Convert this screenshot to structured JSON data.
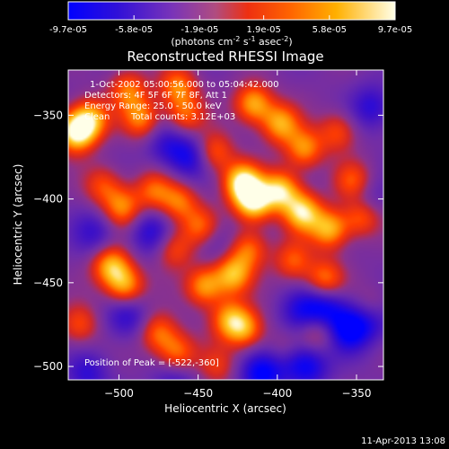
{
  "colorbar": {
    "tick_labels": [
      "-9.7e-05",
      "-5.8e-05",
      "-1.9e-05",
      "1.9e-05",
      "5.8e-05",
      "9.7e-05"
    ],
    "tick_values": [
      -9.7e-05,
      -5.8e-05,
      -1.9e-05,
      1.9e-05,
      5.8e-05,
      9.7e-05
    ],
    "range": [
      -9.7e-05,
      9.7e-05
    ],
    "units_prefix": "(photons cm",
    "units_exp1": "-2",
    "units_mid": " s",
    "units_exp2": "-1",
    "units_mid2": " asec",
    "units_exp3": "-2",
    "units_suffix": ")",
    "colors": [
      "#0000ff",
      "#3b10c8",
      "#8c3ab0",
      "#c86050",
      "#ff3000",
      "#ff8800",
      "#ffc000",
      "#ffffe8"
    ]
  },
  "chart_data": {
    "type": "heatmap",
    "title": "Reconstructed RHESSI Image",
    "xlabel": "Heliocentric X (arcsec)",
    "ylabel": "Heliocentric Y (arcsec)",
    "xlim": [
      -532,
      -333
    ],
    "ylim": [
      -508,
      -323
    ],
    "x_ticks": [
      -500,
      -450,
      -400,
      -350
    ],
    "y_ticks": [
      -350,
      -400,
      -450,
      -500
    ],
    "x_tick_labels": [
      "−500",
      "−450",
      "−400",
      "−350"
    ],
    "y_tick_labels": [
      "−350",
      "−400",
      "−450",
      "−500"
    ],
    "grid": false,
    "peak_x": -522,
    "peak_y": -360,
    "bright_sources": [
      {
        "x": -527,
        "y": -360,
        "v": 1.0
      },
      {
        "x": -518,
        "y": -352,
        "v": 0.7
      },
      {
        "x": -494,
        "y": -335,
        "v": 0.55
      },
      {
        "x": -486,
        "y": -352,
        "v": 0.6
      },
      {
        "x": -463,
        "y": -333,
        "v": 0.6
      },
      {
        "x": -458,
        "y": -350,
        "v": 0.5
      },
      {
        "x": -415,
        "y": -343,
        "v": 0.75
      },
      {
        "x": -398,
        "y": -355,
        "v": 0.7
      },
      {
        "x": -383,
        "y": -370,
        "v": 0.65
      },
      {
        "x": -362,
        "y": -360,
        "v": 0.45
      },
      {
        "x": -440,
        "y": -372,
        "v": 0.55
      },
      {
        "x": -422,
        "y": -390,
        "v": 0.95
      },
      {
        "x": -415,
        "y": -402,
        "v": 0.9
      },
      {
        "x": -398,
        "y": -395,
        "v": 0.85
      },
      {
        "x": -384,
        "y": -408,
        "v": 0.85
      },
      {
        "x": -367,
        "y": -418,
        "v": 0.75
      },
      {
        "x": -352,
        "y": -390,
        "v": 0.55
      },
      {
        "x": -347,
        "y": -410,
        "v": 0.6
      },
      {
        "x": -498,
        "y": -405,
        "v": 0.6
      },
      {
        "x": -510,
        "y": -392,
        "v": 0.45
      },
      {
        "x": -478,
        "y": -395,
        "v": 0.5
      },
      {
        "x": -462,
        "y": -402,
        "v": 0.55
      },
      {
        "x": -448,
        "y": -417,
        "v": 0.55
      },
      {
        "x": -505,
        "y": -440,
        "v": 0.75
      },
      {
        "x": -496,
        "y": -452,
        "v": 0.7
      },
      {
        "x": -465,
        "y": -430,
        "v": 0.45
      },
      {
        "x": -446,
        "y": -452,
        "v": 0.7
      },
      {
        "x": -428,
        "y": -445,
        "v": 0.75
      },
      {
        "x": -418,
        "y": -430,
        "v": 0.55
      },
      {
        "x": -390,
        "y": -437,
        "v": 0.5
      },
      {
        "x": -370,
        "y": -448,
        "v": 0.6
      },
      {
        "x": -430,
        "y": -472,
        "v": 0.65
      },
      {
        "x": -420,
        "y": -478,
        "v": 0.6
      },
      {
        "x": -475,
        "y": -480,
        "v": 0.55
      },
      {
        "x": -463,
        "y": -492,
        "v": 0.55
      },
      {
        "x": -525,
        "y": -475,
        "v": 0.45
      },
      {
        "x": -395,
        "y": -490,
        "v": 0.5
      },
      {
        "x": -375,
        "y": -480,
        "v": 0.4
      },
      {
        "x": -340,
        "y": -465,
        "v": 0.45
      },
      {
        "x": -438,
        "y": -500,
        "v": 0.35
      }
    ],
    "dark_sources": [
      {
        "x": -455,
        "y": -375,
        "v": 0.7
      },
      {
        "x": -470,
        "y": -368,
        "v": 0.5
      },
      {
        "x": -340,
        "y": -345,
        "v": 0.6
      },
      {
        "x": -370,
        "y": -465,
        "v": 0.8
      },
      {
        "x": -355,
        "y": -478,
        "v": 0.9
      },
      {
        "x": -340,
        "y": -470,
        "v": 0.8
      },
      {
        "x": -385,
        "y": -468,
        "v": 0.6
      },
      {
        "x": -393,
        "y": -493,
        "v": 0.75
      },
      {
        "x": -380,
        "y": -500,
        "v": 0.7
      },
      {
        "x": -410,
        "y": -505,
        "v": 0.9
      },
      {
        "x": -495,
        "y": -470,
        "v": 0.6
      },
      {
        "x": -480,
        "y": -420,
        "v": 0.6
      },
      {
        "x": -515,
        "y": -420,
        "v": 0.5
      },
      {
        "x": -345,
        "y": -400,
        "v": 0.5
      },
      {
        "x": -440,
        "y": -425,
        "v": 0.4
      },
      {
        "x": -520,
        "y": -505,
        "v": 0.55
      },
      {
        "x": -465,
        "y": -510,
        "v": 0.5
      }
    ]
  },
  "annotations": {
    "time_range": "1-Oct-2002 05:00:56.000 to 05:04:42.000",
    "detectors": "Detectors: 4F 5F 6F 7F 8F, Att 1",
    "energy_range": "Energy Range: 25.0 - 50.0 keV",
    "method": "Clean",
    "counts": "Total counts: 3.12E+03",
    "peak": "Position of Peak = [-522,-360]"
  },
  "timestamp": "11-Apr-2013 13:08"
}
